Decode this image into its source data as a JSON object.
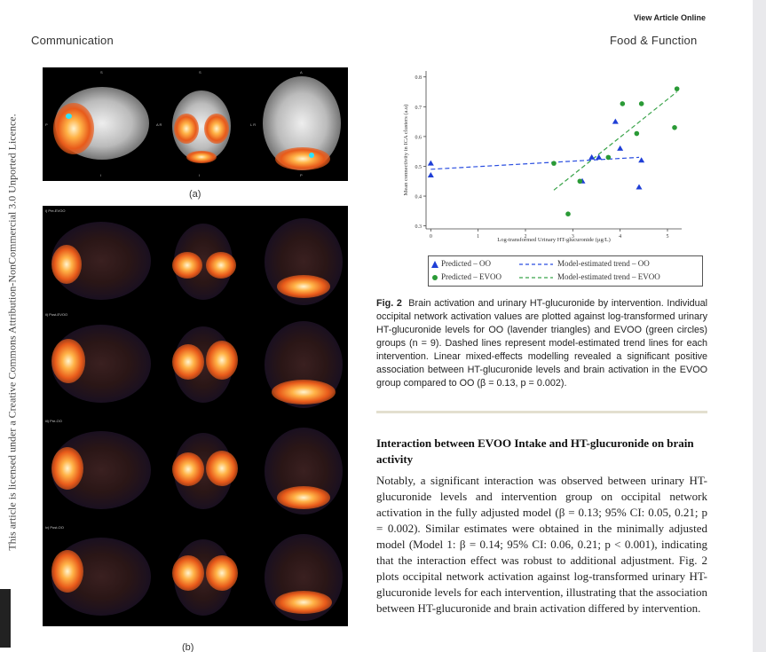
{
  "header": {
    "view_online": "View Article Online",
    "journal_section": "Communication",
    "journal_name": "Food & Function"
  },
  "sidebar": {
    "license_text": "This article is licensed under a Creative Commons Attribution-NonCommercial 3.0 Unported Licence."
  },
  "figure_left": {
    "panel_a_label": "(a)",
    "panel_b_label": "(b)",
    "row_labels": [
      "i) Pre-EVOO",
      "ii) Post-EVOO",
      "iii) Pre-OO",
      "iv) Post-OO"
    ],
    "orient_top": [
      "S",
      "S",
      "A"
    ],
    "orient_sides": [
      "P",
      "A R",
      "L R"
    ],
    "orient_bottom": [
      "I",
      "I",
      "P"
    ]
  },
  "chart_data": {
    "type": "scatter",
    "xlabel": "Log-transformed Urinary HT-glucuronide (µg/L)",
    "ylabel": "Mean connectivity in ICA clusters (a.u)",
    "xlim": [
      -0.1,
      5.3
    ],
    "ylim": [
      0.29,
      0.82
    ],
    "x_ticks": [
      0,
      1,
      2,
      3,
      4,
      5
    ],
    "y_ticks": [
      0.3,
      0.4,
      0.5,
      0.6,
      0.7,
      0.8
    ],
    "y_tick_labels": [
      "0.3",
      "0.4",
      "0.5",
      "0.6",
      "0.7",
      "0.8"
    ],
    "series": [
      {
        "name": "Predicted – OO",
        "marker": "triangle",
        "color": "#1f3fd6",
        "points": [
          [
            0.0,
            0.51
          ],
          [
            0.0,
            0.47
          ],
          [
            3.2,
            0.45
          ],
          [
            3.4,
            0.53
          ],
          [
            3.55,
            0.53
          ],
          [
            3.9,
            0.65
          ],
          [
            4.0,
            0.56
          ],
          [
            4.4,
            0.43
          ],
          [
            4.45,
            0.52
          ]
        ]
      },
      {
        "name": "Predicted – EVOO",
        "marker": "circle",
        "color": "#2a9a36",
        "points": [
          [
            2.6,
            0.51
          ],
          [
            2.9,
            0.34
          ],
          [
            3.15,
            0.45
          ],
          [
            3.75,
            0.53
          ],
          [
            4.05,
            0.71
          ],
          [
            4.35,
            0.61
          ],
          [
            4.45,
            0.71
          ],
          [
            5.15,
            0.63
          ],
          [
            5.2,
            0.76
          ]
        ]
      }
    ],
    "trends": [
      {
        "name": "Model-estimated trend – OO",
        "color": "#2a4ee0",
        "x": [
          0.0,
          4.4
        ],
        "y": [
          0.49,
          0.53
        ]
      },
      {
        "name": "Model-estimated trend – EVOO",
        "color": "#3aa34a",
        "x": [
          2.6,
          5.2
        ],
        "y": [
          0.42,
          0.75
        ]
      }
    ],
    "legend_position": "bottom"
  },
  "legend": {
    "oo_pred": "Predicted – OO",
    "evoo_pred": "Predicted – EVOO",
    "oo_trend": "Model-estimated trend – OO",
    "evoo_trend": "Model-estimated trend – EVOO"
  },
  "caption": {
    "label": "Fig. 2",
    "text": "Brain activation and urinary HT-glucuronide by intervention. Individual occipital network activation values are plotted against log-transformed urinary HT-glucuronide levels for OO (lavender triangles) and EVOO (green circles) groups (n = 9). Dashed lines represent model-estimated trend lines for each intervention. Linear mixed-effects modelling revealed a significant positive association between HT-glucuronide levels and brain activation in the EVOO group compared to OO (β = 0.13, p = 0.002)."
  },
  "section": {
    "heading": "Interaction between EVOO Intake and HT-glucuronide on brain activity",
    "body": "Notably, a significant interaction was observed between urinary HT-glucuronide levels and intervention group on occipital network activation in the fully adjusted model (β = 0.13; 95% CI: 0.05, 0.21; p = 0.002). Similar estimates were obtained in the minimally adjusted model (Model 1: β = 0.14; 95% CI: 0.06, 0.21; p < 0.001), indicating that the interaction effect was robust to additional adjustment. Fig. 2 plots occipital network activation against log-transformed urinary HT-glucuronide levels for each intervention, illustrating that the association between HT-glucuronide and brain activation differed by intervention."
  }
}
